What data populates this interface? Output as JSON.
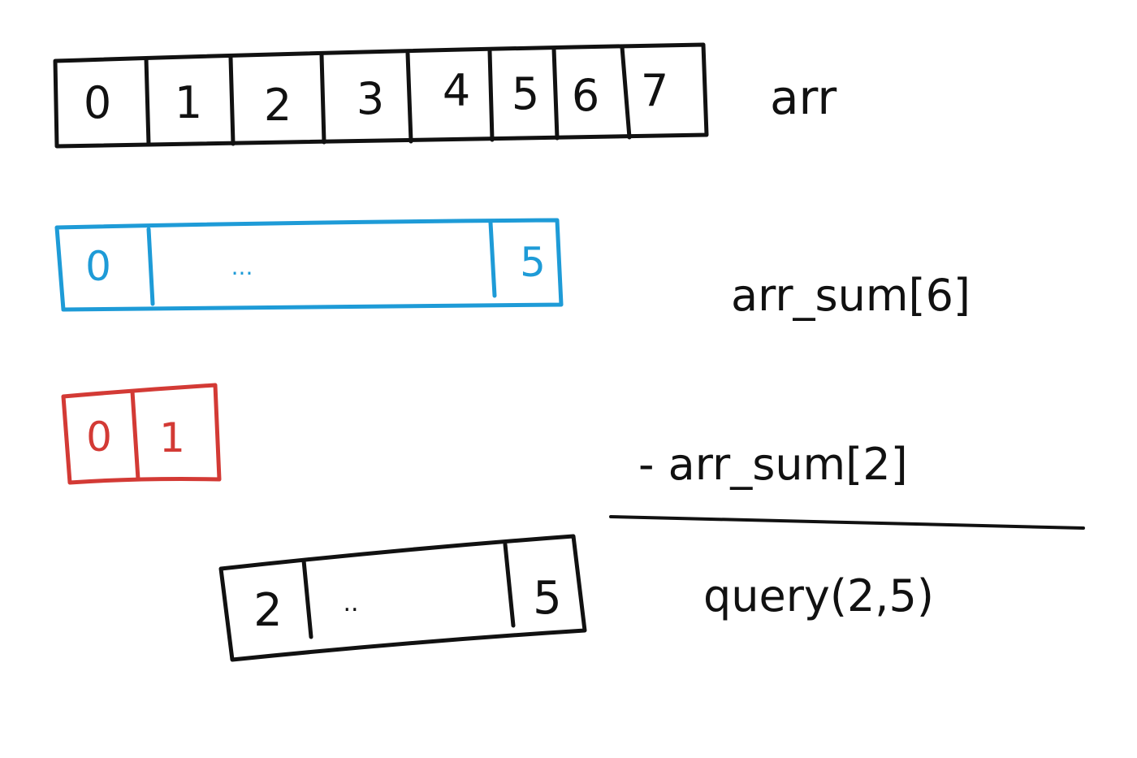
{
  "colors": {
    "ink": "#111111",
    "blue": "#1e9bd7",
    "red": "#d33a35"
  },
  "arr": {
    "label": "arr",
    "cells": [
      "0",
      "1",
      "2",
      "3",
      "4",
      "5",
      "6",
      "7"
    ]
  },
  "arr_sum_6": {
    "label": "arr_sum[6]",
    "cells": [
      "0",
      "...",
      "5"
    ]
  },
  "arr_sum_2": {
    "label": "- arr_sum[2]",
    "cells": [
      "0",
      "1"
    ]
  },
  "query": {
    "label": "query(2,5)",
    "cells": [
      "2",
      "..",
      "5"
    ]
  }
}
